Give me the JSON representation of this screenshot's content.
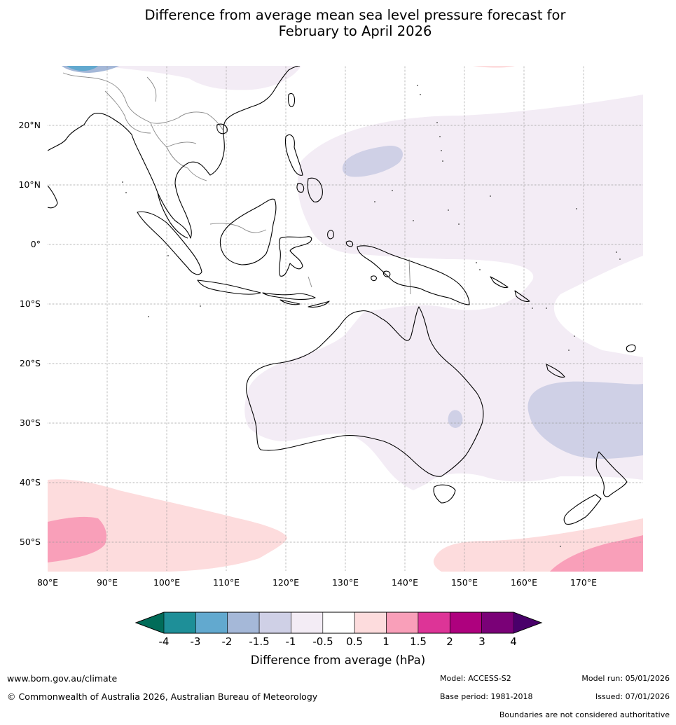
{
  "title": {
    "line1": "Difference from average mean sea level pressure forecast for",
    "line2": "February to April 2026"
  },
  "map": {
    "lon_range": [
      80,
      180
    ],
    "lat_range": [
      -55,
      30
    ],
    "lat_labels": [
      "20°N",
      "10°N",
      "0°",
      "10°S",
      "20°S",
      "30°S",
      "40°S",
      "50°S"
    ],
    "lon_labels": [
      "80°E",
      "90°E",
      "100°E",
      "110°E",
      "120°E",
      "130°E",
      "140°E",
      "150°E",
      "160°E",
      "170°E"
    ]
  },
  "colorbar": {
    "ticks": [
      "-4",
      "-3",
      "-2",
      "-1.5",
      "-1",
      "-0.5",
      "0.5",
      "1",
      "1.5",
      "2",
      "3",
      "4"
    ],
    "colors": [
      "#1e8f98",
      "#62a9cf",
      "#a5b8d8",
      "#cfd0e6",
      "#f3ecf5",
      "#ffffff",
      "#fddcdd",
      "#f99fb9",
      "#dd3497",
      "#ae017e",
      "#7a0177"
    ],
    "extend_low_color": "#016c59",
    "extend_high_color": "#49006a",
    "label": "Difference from average (hPa)"
  },
  "footer": {
    "website": "www.bom.gov.au/climate",
    "copyright": "© Commonwealth of Australia 2026, Australian Bureau of Meteorology",
    "model": "Model: ACCESS-S2",
    "base_period": "Base period: 1981-2018",
    "model_run": "Model run: 05/01/2026",
    "issued": "Issued: 07/01/2026",
    "disclaimer": "Boundaries are not considered authoritative"
  }
}
